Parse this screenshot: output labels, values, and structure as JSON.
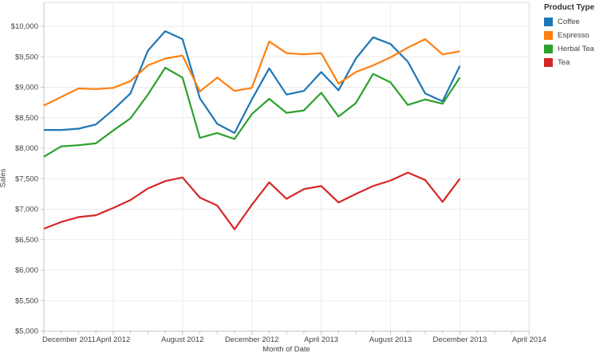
{
  "legend": {
    "title": "Product Type",
    "items": [
      {
        "label": "Coffee",
        "color": "#1f77b4"
      },
      {
        "label": "Espresso",
        "color": "#ff7f0e"
      },
      {
        "label": "Herbal Tea",
        "color": "#2ca02c"
      },
      {
        "label": "Tea",
        "color": "#d62728"
      }
    ]
  },
  "chart_data": {
    "type": "line",
    "title": "",
    "xlabel": "Month of Date",
    "ylabel": "Sales",
    "grid": "on",
    "legend_position": "right",
    "ylim": [
      5000,
      10000
    ],
    "y_tick_values": [
      5000,
      5500,
      6000,
      6500,
      7000,
      7500,
      8000,
      8500,
      9000,
      9500,
      10000
    ],
    "y_tick_labels": [
      "$5,000",
      "$5,500",
      "$6,000",
      "$6,500",
      "$7,000",
      "$7,500",
      "$8,000",
      "$8,500",
      "$9,000",
      "$9,500",
      "$10,000"
    ],
    "x_axis_months_total": 28,
    "x_axis_ticks": [
      {
        "index": 0,
        "label": "December 2011"
      },
      {
        "index": 4,
        "label": "April 2012"
      },
      {
        "index": 8,
        "label": "August 2012"
      },
      {
        "index": 12,
        "label": "December 2012"
      },
      {
        "index": 16,
        "label": "April 2013"
      },
      {
        "index": 20,
        "label": "August 2013"
      },
      {
        "index": 24,
        "label": "December 2013"
      },
      {
        "index": 28,
        "label": "April 2014"
      }
    ],
    "x": [
      "December 2011",
      "January 2012",
      "February 2012",
      "March 2012",
      "April 2012",
      "May 2012",
      "June 2012",
      "July 2012",
      "August 2012",
      "September 2012",
      "October 2012",
      "November 2012",
      "December 2012",
      "January 2013",
      "February 2013",
      "March 2013",
      "April 2013",
      "May 2013",
      "June 2013",
      "July 2013",
      "August 2013",
      "September 2013",
      "October 2013",
      "November 2013",
      "December 2013"
    ],
    "series": [
      {
        "name": "Coffee",
        "color": "#1f77b4",
        "values": [
          8300,
          8300,
          8320,
          8390,
          8630,
          8900,
          9600,
          9920,
          9790,
          8820,
          8400,
          8250,
          8800,
          9310,
          8880,
          8940,
          9250,
          8950,
          9470,
          9820,
          9710,
          9420,
          8900,
          8770,
          9350
        ]
      },
      {
        "name": "Espresso",
        "color": "#ff7f0e",
        "values": [
          8700,
          8840,
          8980,
          8970,
          8990,
          9100,
          9360,
          9470,
          9520,
          8930,
          9160,
          8940,
          8990,
          9750,
          9560,
          9540,
          9560,
          9060,
          9250,
          9360,
          9490,
          9650,
          9790,
          9540,
          9590
        ]
      },
      {
        "name": "Herbal Tea",
        "color": "#2ca02c",
        "values": [
          7860,
          8030,
          8050,
          8080,
          8290,
          8490,
          8880,
          9320,
          9160,
          8170,
          8250,
          8150,
          8560,
          8810,
          8580,
          8620,
          8910,
          8520,
          8740,
          9220,
          9080,
          8710,
          8800,
          8730,
          9160
        ]
      },
      {
        "name": "Tea",
        "color": "#d62728",
        "values": [
          6680,
          6790,
          6870,
          6900,
          7020,
          7150,
          7340,
          7460,
          7520,
          7190,
          7060,
          6670,
          7070,
          7440,
          7170,
          7330,
          7380,
          7110,
          7250,
          7380,
          7470,
          7600,
          7480,
          7120,
          7500
        ]
      }
    ]
  }
}
